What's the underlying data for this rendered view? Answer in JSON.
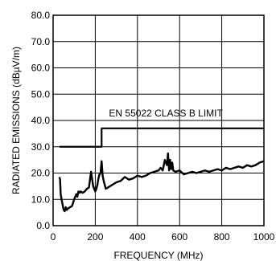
{
  "chart_data": {
    "type": "line",
    "xlabel": "FREQUENCY (MHz)",
    "ylabel": "RADIATED EMISSIONS (dBµV/m)",
    "xlim": [
      0,
      1000
    ],
    "ylim": [
      0,
      80
    ],
    "xticks": [
      0,
      200,
      400,
      600,
      800,
      1000
    ],
    "yticks": [
      0,
      10,
      20,
      30,
      40,
      50,
      60,
      70,
      80
    ],
    "xtick_labels": [
      "0",
      "200",
      "400",
      "600",
      "800",
      "1000"
    ],
    "ytick_labels": [
      "0.0",
      "10.0",
      "20.0",
      "30.0",
      "40.0",
      "50.0",
      "60.0",
      "70.0",
      "80.0"
    ],
    "grid": true,
    "annotations": [
      {
        "text": "EN 55022 CLASS B LIMIT",
        "x": 265,
        "y": 41.5
      }
    ],
    "series": [
      {
        "name": "EN 55022 CLASS B LIMIT",
        "style": "limit",
        "x": [
          30,
          230,
          230,
          1000
        ],
        "y": [
          30,
          30,
          37,
          37
        ]
      },
      {
        "style": "emissions",
        "x": [
          30,
          33,
          36,
          40,
          45,
          50,
          55,
          60,
          65,
          70,
          80,
          90,
          100,
          110,
          115,
          120,
          125,
          130,
          140,
          150,
          160,
          170,
          180,
          190,
          195,
          200,
          205,
          210,
          215,
          220,
          225,
          230,
          235,
          240,
          245,
          250,
          260,
          270,
          280,
          290,
          300,
          320,
          340,
          360,
          380,
          400,
          420,
          440,
          460,
          480,
          500,
          510,
          520,
          530,
          540,
          545,
          550,
          555,
          560,
          565,
          570,
          580,
          600,
          620,
          640,
          660,
          680,
          700,
          720,
          740,
          760,
          780,
          800,
          820,
          840,
          860,
          880,
          900,
          920,
          940,
          960,
          980,
          1000
        ],
        "y": [
          18.5,
          17.5,
          12,
          10,
          8,
          6,
          5.5,
          7,
          6,
          6.5,
          7,
          7.5,
          10,
          12,
          11,
          13,
          12.5,
          13,
          12.5,
          13,
          14,
          14.5,
          20.5,
          15,
          14,
          13,
          14,
          15.5,
          18,
          19.5,
          20,
          24.5,
          19,
          17,
          15.5,
          14,
          14.5,
          15,
          15.5,
          16,
          16.5,
          17,
          18.5,
          17.5,
          18,
          19,
          18.5,
          19,
          20,
          20.5,
          21,
          22,
          21,
          25,
          23,
          27.5,
          21,
          25,
          21.5,
          24,
          21,
          20.5,
          21,
          19.5,
          20,
          20.5,
          20,
          20.5,
          21,
          20.5,
          21,
          21.5,
          21,
          22,
          21.5,
          22,
          22.5,
          22,
          23,
          22.5,
          23,
          24,
          24.5
        ]
      }
    ]
  }
}
